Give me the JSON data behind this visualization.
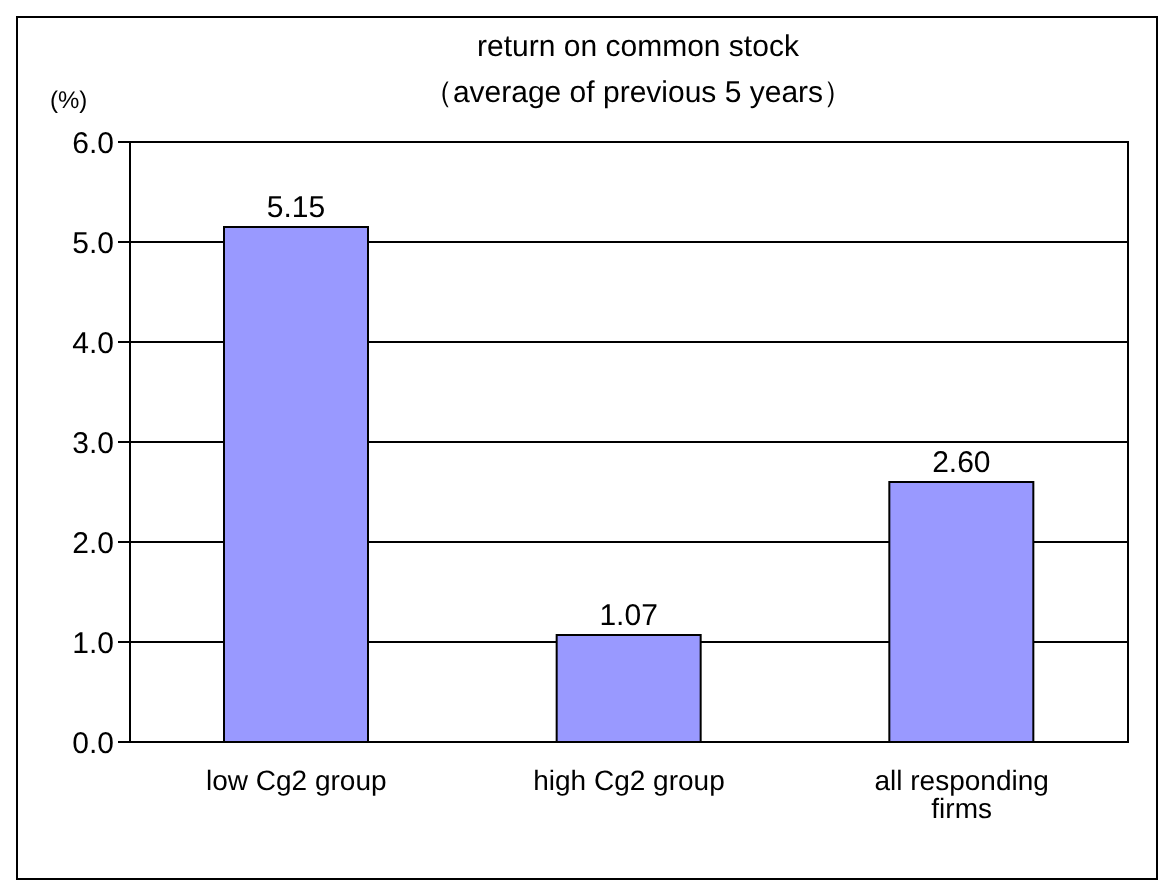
{
  "chart_data": {
    "type": "bar",
    "title": "return on common stock",
    "subtitle": "（average of previous 5 years）",
    "ylabel": "(%)",
    "categories": [
      "low Cg2 group",
      "high Cg2 group",
      "all responding firms"
    ],
    "values": [
      5.15,
      1.07,
      2.6
    ],
    "value_labels": [
      "5.15",
      "1.07",
      "2.60"
    ],
    "color": "#9999ff",
    "ylim": [
      0,
      6
    ],
    "yticks": [
      {
        "value": 0,
        "label": "0.0"
      },
      {
        "value": 1,
        "label": "1.0"
      },
      {
        "value": 2,
        "label": "2.0"
      },
      {
        "value": 3,
        "label": "3.0"
      },
      {
        "value": 4,
        "label": "4.0"
      },
      {
        "value": 5,
        "label": "5.0"
      },
      {
        "value": 6,
        "label": "6.0"
      }
    ],
    "grid": "y"
  }
}
